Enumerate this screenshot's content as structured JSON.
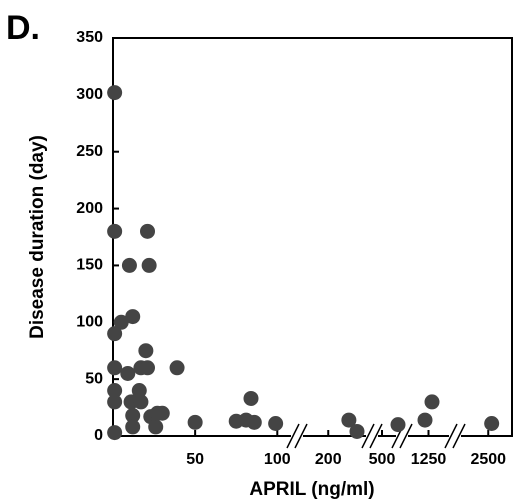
{
  "chart_data": {
    "type": "scatter",
    "panel_label": "D.",
    "xlabel": "APRIL (ng/ml)",
    "ylabel": "Disease duration (day)",
    "color": "#444444",
    "x_segments": [
      [
        0,
        112
      ],
      [
        150,
        270
      ],
      [
        450,
        600
      ],
      [
        1000,
        1500
      ],
      [
        2150,
        2750
      ]
    ],
    "xticks": [
      50,
      100,
      200,
      500,
      1250,
      2500
    ],
    "ylim": [
      0,
      350
    ],
    "yticks": [
      0,
      50,
      100,
      150,
      200,
      250,
      300,
      350
    ],
    "x": [
      1,
      1,
      1,
      1,
      1,
      1,
      1,
      5,
      10,
      9,
      12,
      11,
      12,
      12,
      16,
      17,
      17,
      20,
      21,
      21,
      22,
      23,
      26,
      27,
      30,
      39,
      50,
      75,
      81,
      84,
      86,
      99,
      233,
      246,
      580,
      1217,
      1283,
      2536
    ],
    "values": [
      302,
      180,
      90,
      60,
      40,
      30,
      3,
      100,
      150,
      55,
      105,
      30,
      18,
      8,
      40,
      30,
      60,
      75,
      60,
      180,
      150,
      17,
      8,
      20,
      20,
      60,
      12,
      13,
      14,
      33,
      12,
      11,
      14,
      4,
      10,
      14,
      30,
      11
    ]
  }
}
